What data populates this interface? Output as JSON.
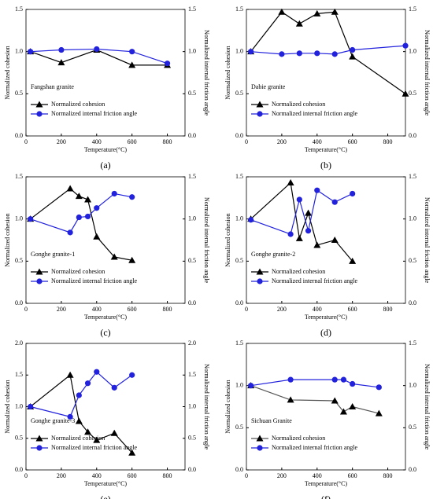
{
  "chart_data": [
    {
      "type": "line",
      "annotation": "Fangshan granite",
      "caption": "(a)",
      "x_label": "Temperature(°C)",
      "y_label": "Normalized cohesion",
      "y2_label": "Normalized internal friction angle",
      "x": [
        25,
        200,
        400,
        600,
        800
      ],
      "xlim": [
        0,
        900
      ],
      "xticks": [
        0,
        200,
        400,
        600,
        800
      ],
      "ylim": [
        0,
        1.5
      ],
      "yticks": [
        {
          "value": 0,
          "label": "0.0"
        },
        {
          "value": 0.5,
          "label": "0.5"
        },
        {
          "value": 1,
          "label": "1.0"
        },
        {
          "value": 1.5,
          "label": "1.5"
        }
      ],
      "y2lim": [
        0,
        1.5
      ],
      "y2ticks": [
        {
          "value": 0,
          "label": "0.0"
        },
        {
          "value": 0.5,
          "label": "0.5"
        },
        {
          "value": 1,
          "label": "1.0"
        },
        {
          "value": 1.5,
          "label": "1.5"
        }
      ],
      "series": [
        {
          "name": "Normalized cohesion",
          "color": "#000000",
          "marker": "triangle",
          "values": [
            1.0,
            0.87,
            1.02,
            0.84,
            0.84
          ]
        },
        {
          "name": "Normalized internal friction angle",
          "color": "#2222dd",
          "marker": "circle",
          "axis": "y2",
          "values": [
            1.0,
            1.02,
            1.03,
            1.0,
            0.86
          ]
        }
      ]
    },
    {
      "type": "line",
      "annotation": "Dabie granite",
      "caption": "(b)",
      "x_label": "Temperature(°C)",
      "y_label": "Normalized cohesion",
      "y2_label": "Normalized internal friction angle",
      "x": [
        25,
        200,
        300,
        400,
        500,
        600,
        900
      ],
      "xlim": [
        0,
        900
      ],
      "xticks": [
        0,
        200,
        400,
        600,
        800
      ],
      "ylim": [
        0,
        1.5
      ],
      "yticks": [
        {
          "value": 0,
          "label": "0.0"
        },
        {
          "value": 0.5,
          "label": "0.5"
        },
        {
          "value": 1,
          "label": "1.0"
        },
        {
          "value": 1.5,
          "label": "1.5"
        }
      ],
      "y2lim": [
        0,
        1.5
      ],
      "y2ticks": [
        {
          "value": 0,
          "label": "0.0"
        },
        {
          "value": 0.5,
          "label": "0.5"
        },
        {
          "value": 1,
          "label": "1.0"
        },
        {
          "value": 1.5,
          "label": "1.5"
        }
      ],
      "series": [
        {
          "name": "Normalized cohesion",
          "color": "#000000",
          "marker": "triangle",
          "values": [
            1.0,
            1.47,
            1.33,
            1.45,
            1.47,
            0.94,
            0.5
          ]
        },
        {
          "name": "Normalized internal friction angle",
          "color": "#2222dd",
          "marker": "circle",
          "axis": "y2",
          "values": [
            1.0,
            0.97,
            0.98,
            0.98,
            0.97,
            1.02,
            1.07
          ]
        }
      ]
    },
    {
      "type": "line",
      "annotation": "Gonghe granite-1",
      "caption": "(c)",
      "x_label": "Temperature(°C)",
      "y_label": "Normalized cohesion",
      "y2_label": "Normalized internal friction angle",
      "x": [
        25,
        250,
        300,
        350,
        400,
        500,
        600
      ],
      "xlim": [
        0,
        900
      ],
      "xticks": [
        0,
        200,
        400,
        600,
        800
      ],
      "ylim": [
        0,
        1.5
      ],
      "yticks": [
        {
          "value": 0,
          "label": "0.0"
        },
        {
          "value": 0.5,
          "label": "0.5"
        },
        {
          "value": 1,
          "label": "1.0"
        },
        {
          "value": 1.5,
          "label": "1.5"
        }
      ],
      "y2lim": [
        0,
        1.5
      ],
      "y2ticks": [
        {
          "value": 0,
          "label": "0.0"
        },
        {
          "value": 0.5,
          "label": "0.5"
        },
        {
          "value": 1,
          "label": "1.0"
        },
        {
          "value": 1.5,
          "label": "1.5"
        }
      ],
      "series": [
        {
          "name": "Normalized cohesion",
          "color": "#000000",
          "marker": "triangle",
          "values": [
            1.0,
            1.36,
            1.27,
            1.23,
            0.79,
            0.55,
            0.51
          ]
        },
        {
          "name": "Normalized internal friction angle",
          "color": "#2222dd",
          "marker": "circle",
          "axis": "y2",
          "values": [
            1.0,
            0.84,
            1.02,
            1.03,
            1.13,
            1.3,
            1.26
          ]
        }
      ]
    },
    {
      "type": "line",
      "annotation": "Gonghe granite-2",
      "caption": "(d)",
      "x_label": "Temperature(°C)",
      "y_label": "Normalized cohesion",
      "y2_label": "Normalized internal friction angle",
      "x": [
        25,
        250,
        300,
        350,
        400,
        500,
        600
      ],
      "xlim": [
        0,
        900
      ],
      "xticks": [
        0,
        200,
        400,
        600,
        800
      ],
      "ylim": [
        0,
        1.5
      ],
      "yticks": [
        {
          "value": 0,
          "label": "0.0"
        },
        {
          "value": 0.5,
          "label": "0.5"
        },
        {
          "value": 1,
          "label": "1.0"
        },
        {
          "value": 1.5,
          "label": "1.5"
        }
      ],
      "y2lim": [
        0,
        1.5
      ],
      "y2ticks": [
        {
          "value": 0,
          "label": "0.0"
        },
        {
          "value": 0.5,
          "label": "0.5"
        },
        {
          "value": 1,
          "label": "1.0"
        },
        {
          "value": 1.5,
          "label": "1.5"
        }
      ],
      "series": [
        {
          "name": "Normalized cohesion",
          "color": "#000000",
          "marker": "triangle",
          "values": [
            1.0,
            1.43,
            0.77,
            1.07,
            0.69,
            0.75,
            0.5
          ]
        },
        {
          "name": "Normalized internal friction angle",
          "color": "#2222dd",
          "marker": "circle",
          "axis": "y2",
          "values": [
            0.99,
            0.82,
            1.23,
            0.86,
            1.34,
            1.2,
            1.3
          ]
        }
      ]
    },
    {
      "type": "line",
      "annotation": "Gonghe granite-3",
      "caption": "(e)",
      "x_label": "Temperature(°C)",
      "y_label": "Normalized cohesion",
      "y2_label": "Normalized internal friction angle",
      "x": [
        25,
        250,
        300,
        350,
        400,
        500,
        600
      ],
      "xlim": [
        0,
        900
      ],
      "xticks": [
        0,
        200,
        400,
        600,
        800
      ],
      "ylim": [
        0,
        2
      ],
      "yticks": [
        {
          "value": 0,
          "label": "0.0"
        },
        {
          "value": 0.5,
          "label": "0.5"
        },
        {
          "value": 1,
          "label": "1.0"
        },
        {
          "value": 1.5,
          "label": "1.5"
        },
        {
          "value": 2,
          "label": "2.0"
        }
      ],
      "y2lim": [
        0,
        2
      ],
      "y2ticks": [
        {
          "value": 0,
          "label": "0.0"
        },
        {
          "value": 0.5,
          "label": "0.5"
        },
        {
          "value": 1,
          "label": "1.0"
        },
        {
          "value": 1.5,
          "label": "1.5"
        },
        {
          "value": 2,
          "label": "2.0"
        }
      ],
      "series": [
        {
          "name": "Normalized cohesion",
          "color": "#000000",
          "marker": "triangle",
          "values": [
            1.0,
            1.5,
            0.77,
            0.6,
            0.47,
            0.58,
            0.27
          ]
        },
        {
          "name": "Normalized internal friction angle",
          "color": "#2222dd",
          "marker": "circle",
          "axis": "y2",
          "values": [
            1.0,
            0.84,
            1.18,
            1.37,
            1.55,
            1.3,
            1.5
          ]
        }
      ]
    },
    {
      "type": "line",
      "annotation": "Sichuan Granite",
      "caption": "(f)",
      "x_label": "Temperature(°C)",
      "y_label": "Normalized cohesion",
      "y2_label": "Normalized internal friction angle",
      "x": [
        25,
        250,
        500,
        550,
        600,
        750
      ],
      "xlim": [
        0,
        900
      ],
      "xticks": [
        0,
        200,
        400,
        600,
        800
      ],
      "ylim": [
        0,
        1.5
      ],
      "yticks": [
        {
          "value": 0,
          "label": "0.0"
        },
        {
          "value": 0.5,
          "label": "0.5"
        },
        {
          "value": 1,
          "label": "1.0"
        },
        {
          "value": 1.5,
          "label": "1.5"
        }
      ],
      "y2lim": [
        0,
        1.5
      ],
      "y2ticks": [
        {
          "value": 0,
          "label": "0.0"
        },
        {
          "value": 0.5,
          "label": "0.5"
        },
        {
          "value": 1,
          "label": "1.0"
        },
        {
          "value": 1.5,
          "label": "1.5"
        }
      ],
      "series": [
        {
          "name": "Normalized cohesion",
          "color": "#555555",
          "marker": "triangle",
          "values": [
            1.0,
            0.83,
            0.82,
            0.69,
            0.75,
            0.67
          ]
        },
        {
          "name": "Normalized internal friction angle",
          "color": "#2222dd",
          "marker": "circle",
          "axis": "y2",
          "values": [
            1.0,
            1.07,
            1.07,
            1.07,
            1.02,
            0.98
          ]
        }
      ]
    }
  ]
}
